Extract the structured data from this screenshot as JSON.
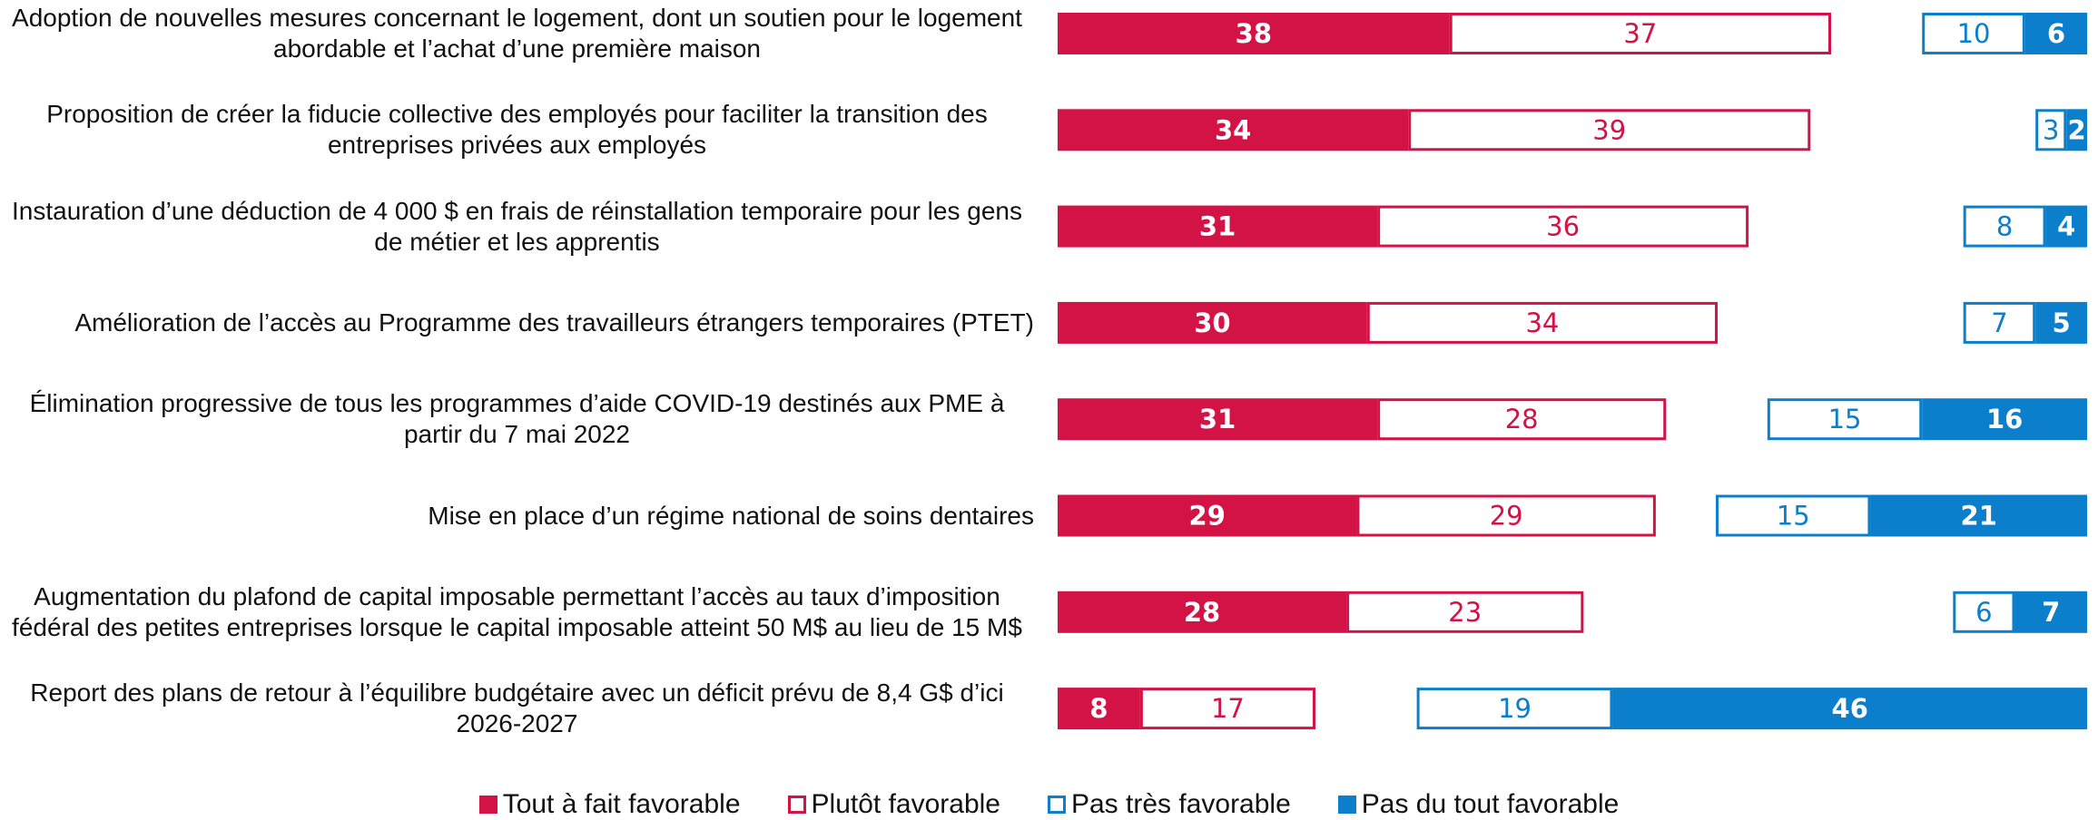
{
  "chart_data": {
    "type": "diverging_stacked_bar",
    "categories": [
      "Adoption de nouvelles mesures concernant le logement, dont un soutien pour le logement abordable et l’achat d’une première maison",
      "Proposition de créer la fiducie collective des employés pour faciliter la transition des entreprises privées aux employés",
      "Instauration d’une déduction de 4 000 $ en frais de réinstallation temporaire pour les gens de métier et les apprentis",
      "Amélioration de l’accès au Programme des travailleurs étrangers temporaires (PTET)",
      "Élimination progressive de tous les programmes d’aide COVID-19 destinés aux PME à partir du 7 mai 2022",
      "Mise en place d’un régime national de soins dentaires",
      "Augmentation du plafond de capital imposable permettant l’accès au taux d’imposition fédéral des petites entreprises lorsque le capital imposable atteint 50 M$ au lieu de 15 M$",
      "Report des plans de retour à l’équilibre budgétaire avec un déficit prévu de 8,4 G$ d’ici 2026-2027"
    ],
    "series": [
      {
        "name": "Tout à fait favorable",
        "color": "#d31245",
        "fill": "solid",
        "side": "left",
        "values": [
          38,
          34,
          31,
          30,
          31,
          29,
          28,
          8
        ]
      },
      {
        "name": "Plutôt favorable",
        "color": "#d31245",
        "fill": "outline",
        "side": "left",
        "values": [
          37,
          39,
          36,
          34,
          28,
          29,
          23,
          17
        ]
      },
      {
        "name": "Pas très favorable",
        "color": "#0b7fcc",
        "fill": "outline",
        "side": "right",
        "values": [
          10,
          3,
          8,
          7,
          15,
          15,
          6,
          19
        ]
      },
      {
        "name": "Pas du tout favorable",
        "color": "#0b7fcc",
        "fill": "solid",
        "side": "right",
        "values": [
          6,
          2,
          4,
          5,
          16,
          21,
          7,
          46
        ]
      }
    ],
    "legend": "bottom"
  }
}
